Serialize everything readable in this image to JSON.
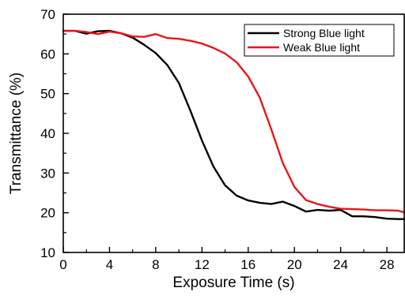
{
  "chart_data": {
    "type": "line",
    "xlabel": "Exposure Time (s)",
    "ylabel": "Transmittance (%)",
    "xlim": [
      0,
      29.5
    ],
    "ylim": [
      10,
      70
    ],
    "xticks": [
      0,
      4,
      8,
      12,
      16,
      20,
      24,
      28
    ],
    "xtick_labels": [
      "0",
      "4",
      "8",
      "12",
      "16",
      "20",
      "24",
      "28"
    ],
    "yticks": [
      10,
      20,
      30,
      40,
      50,
      60,
      70
    ],
    "ytick_labels": [
      "10",
      "20",
      "30",
      "40",
      "50",
      "60",
      "70"
    ],
    "legend_position": "top-right",
    "grid": false,
    "series": [
      {
        "name": "Strong Blue light",
        "color": "#000000",
        "x": [
          0,
          1,
          2,
          3,
          4,
          5,
          6,
          7,
          8,
          9,
          10,
          11,
          12,
          13,
          14,
          15,
          16,
          17,
          18,
          19,
          20,
          21,
          22,
          23,
          24,
          25,
          26,
          27,
          28,
          29,
          29.5
        ],
        "y": [
          65.8,
          65.8,
          65.1,
          65.7,
          65.8,
          65.2,
          64.1,
          62.3,
          60.2,
          57.2,
          52.7,
          45.7,
          38.2,
          31.6,
          26.9,
          24.3,
          23.1,
          22.5,
          22.2,
          22.8,
          21.7,
          20.3,
          20.7,
          20.5,
          20.7,
          19.1,
          19.1,
          18.9,
          18.5,
          18.4,
          18.4
        ]
      },
      {
        "name": "Weak Blue light",
        "color": "#e8151b",
        "x": [
          0,
          1,
          2,
          3,
          4,
          5,
          6,
          7,
          8,
          9,
          10,
          11,
          12,
          13,
          14,
          15,
          16,
          17,
          18,
          19,
          20,
          21,
          22,
          23,
          24,
          25,
          26,
          27,
          28,
          29,
          29.5
        ],
        "y": [
          65.8,
          65.8,
          65.5,
          65.0,
          65.6,
          65.2,
          64.4,
          64.3,
          65.0,
          64.0,
          63.8,
          63.3,
          62.6,
          61.5,
          60.1,
          57.9,
          54.3,
          49.0,
          41.0,
          32.5,
          26.5,
          23.2,
          22.2,
          21.5,
          21.0,
          20.9,
          20.8,
          20.6,
          20.6,
          20.5,
          20.1
        ]
      }
    ]
  }
}
